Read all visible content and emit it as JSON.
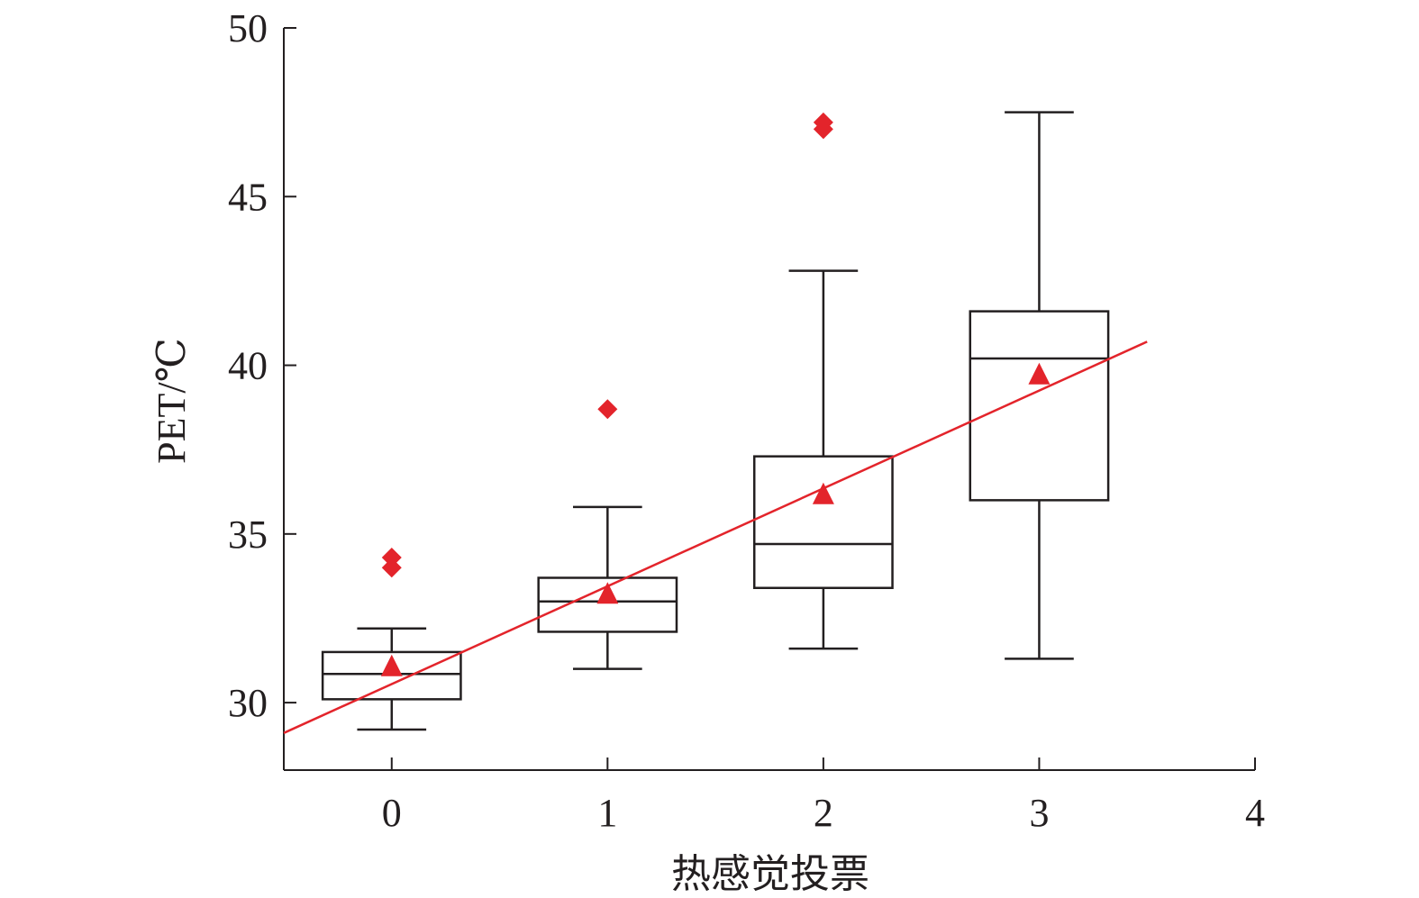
{
  "chart_data": {
    "type": "box",
    "xlabel": "热感觉投票",
    "ylabel": "PET/℃",
    "xlim": [
      -0.5,
      4
    ],
    "ylim": [
      28,
      50
    ],
    "x_ticks": [
      "0",
      "1",
      "2",
      "3",
      "4"
    ],
    "y_ticks": [
      "30",
      "35",
      "40",
      "45",
      "50"
    ],
    "grid": false,
    "colors": {
      "box": "#231f20",
      "marker": "#e3242b",
      "fit_line": "#e3242b"
    },
    "boxes": [
      {
        "x": 0,
        "whisker_low": 29.2,
        "q1": 30.1,
        "median": 30.85,
        "q3": 31.5,
        "whisker_high": 32.2,
        "mean": 31.05,
        "outliers": [
          34.3,
          34.0
        ]
      },
      {
        "x": 1,
        "whisker_low": 31.0,
        "q1": 32.1,
        "median": 33.0,
        "q3": 33.7,
        "whisker_high": 35.8,
        "mean": 33.2,
        "outliers": [
          38.7
        ]
      },
      {
        "x": 2,
        "whisker_low": 31.6,
        "q1": 33.4,
        "median": 34.7,
        "q3": 37.3,
        "whisker_high": 42.8,
        "mean": 36.15,
        "outliers": [
          47.2,
          47.0
        ]
      },
      {
        "x": 3,
        "whisker_low": 31.3,
        "q1": 36.0,
        "median": 40.2,
        "q3": 41.6,
        "whisker_high": 47.5,
        "mean": 39.7,
        "outliers": []
      }
    ],
    "fit_line": {
      "x": [
        -0.5,
        3.5
      ],
      "y": [
        29.1,
        40.7
      ]
    }
  }
}
